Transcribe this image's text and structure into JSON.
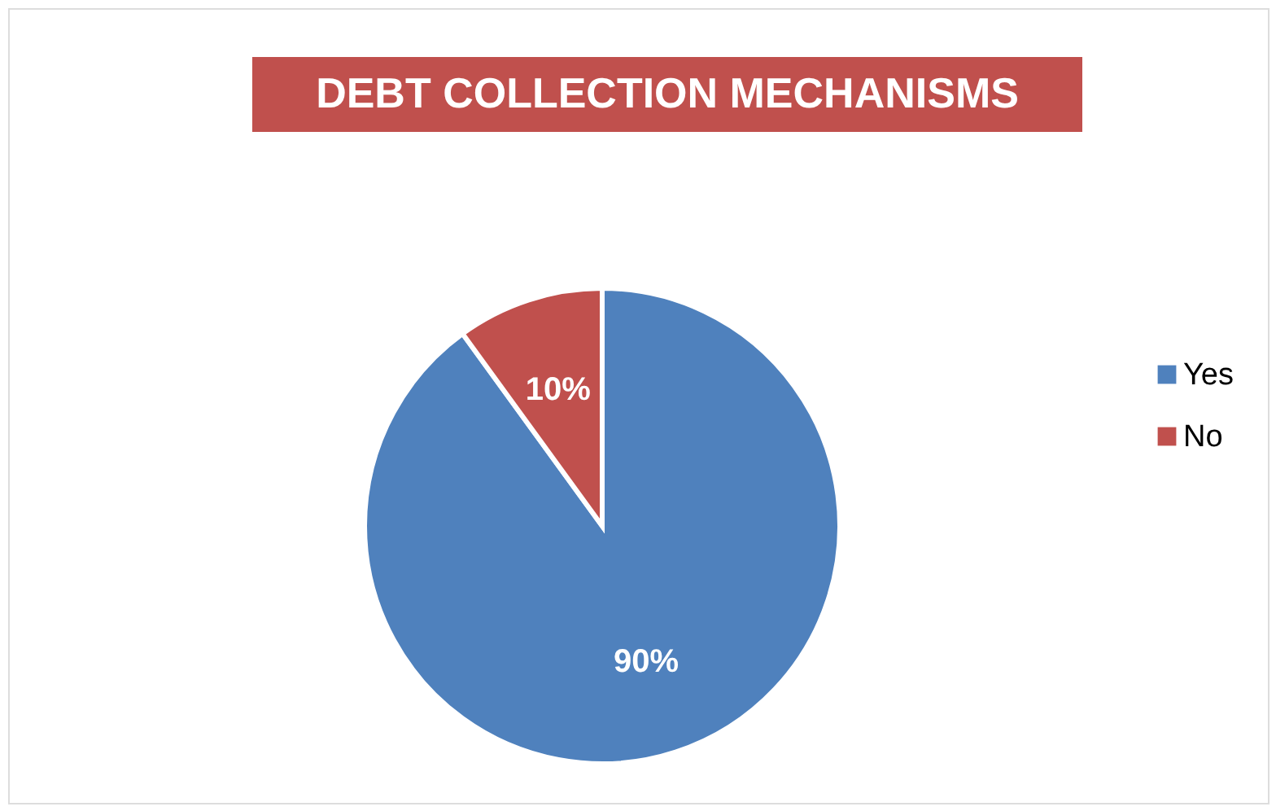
{
  "chart_data": {
    "type": "pie",
    "title": "DEBT COLLECTION MECHANISMS",
    "categories": [
      "Yes",
      "No"
    ],
    "values": [
      90,
      10
    ],
    "colors": [
      "#4f81bd",
      "#c0504d"
    ],
    "value_labels": [
      "90%",
      "10%"
    ],
    "legend": "right"
  }
}
